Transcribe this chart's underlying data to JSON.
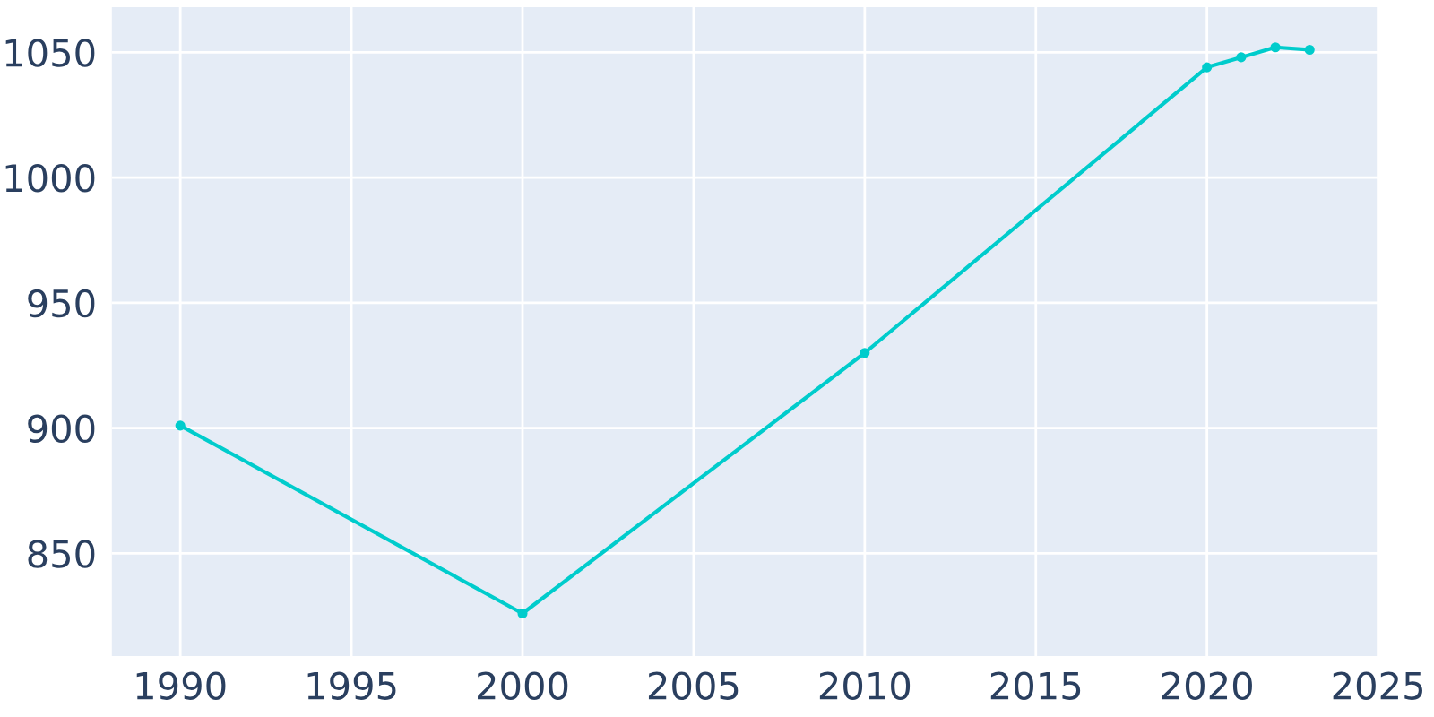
{
  "chart_data": {
    "type": "line",
    "x": [
      1990,
      2000,
      2010,
      2020,
      2021,
      2022,
      2023
    ],
    "series": [
      {
        "color": "#00cccc",
        "values": [
          901,
          826,
          930,
          1044,
          1048,
          1052,
          1051
        ]
      }
    ],
    "xlim": [
      1988,
      2025
    ],
    "ylim": [
      809,
      1068
    ],
    "xticks": [
      1990,
      1995,
      2000,
      2005,
      2010,
      2015,
      2020,
      2025
    ],
    "yticks": [
      850,
      900,
      950,
      1000,
      1050
    ],
    "grid": true,
    "marker": "circle",
    "line_style": "solid",
    "legend": false
  }
}
